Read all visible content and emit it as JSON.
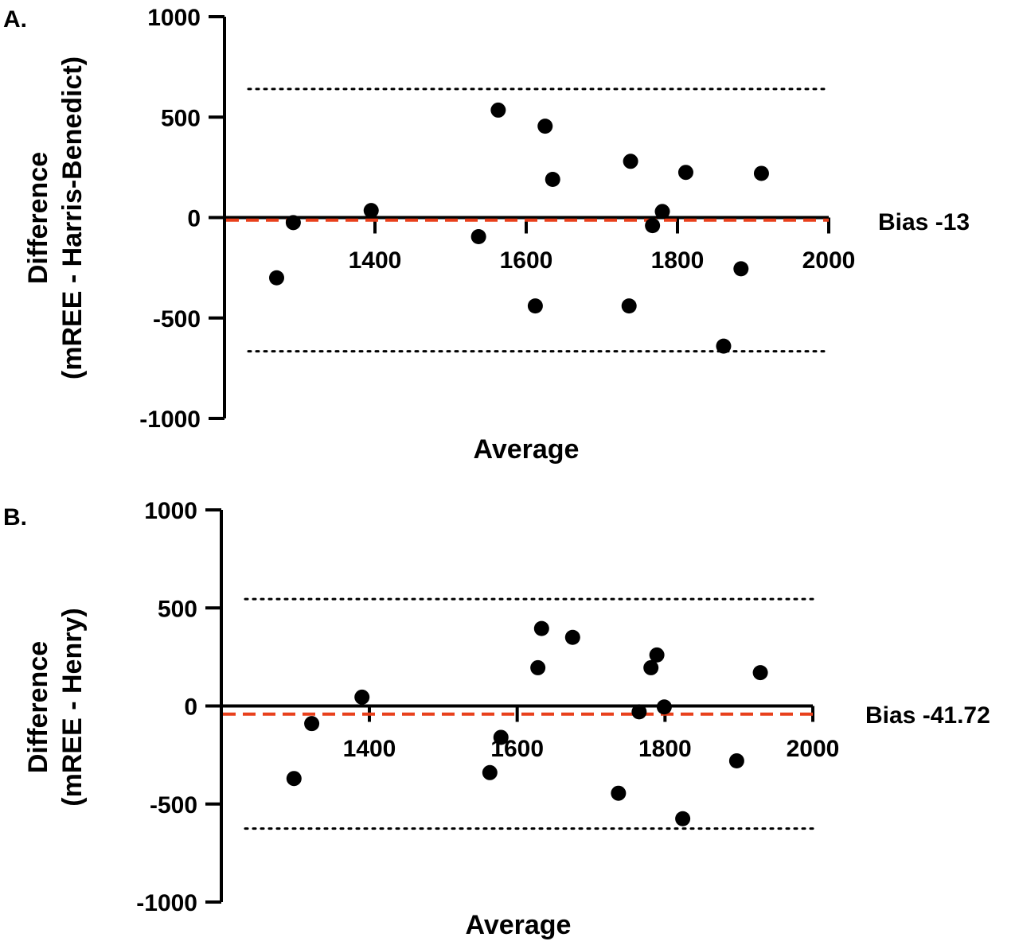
{
  "chart_data": [
    {
      "type": "scatter",
      "panel_label": "A.",
      "xlabel": "Average",
      "ylabel_lines": [
        "Difference",
        "(mREE - Harris-Benedict)"
      ],
      "ylim": [
        -1000,
        1000
      ],
      "yticks": [
        "1000",
        "500",
        "0",
        "-500",
        "-1000"
      ],
      "xticks": [
        "1400",
        "1600",
        "1800",
        "2000"
      ],
      "bias_label": "Bias -13",
      "bias": -13,
      "loa_upper": 640,
      "loa_lower": -666,
      "points": [
        {
          "x": 1270,
          "y": -300
        },
        {
          "x": 1292,
          "y": -25
        },
        {
          "x": 1395,
          "y": 35
        },
        {
          "x": 1537,
          "y": -95
        },
        {
          "x": 1563,
          "y": 535
        },
        {
          "x": 1612,
          "y": -440
        },
        {
          "x": 1625,
          "y": 455
        },
        {
          "x": 1635,
          "y": 190
        },
        {
          "x": 1736,
          "y": -440
        },
        {
          "x": 1738,
          "y": 280
        },
        {
          "x": 1767,
          "y": -40
        },
        {
          "x": 1780,
          "y": 30
        },
        {
          "x": 1811,
          "y": 225
        },
        {
          "x": 1861,
          "y": -640
        },
        {
          "x": 1884,
          "y": -255
        },
        {
          "x": 1911,
          "y": 220
        }
      ],
      "colors": {
        "bias_line": "#e8401c",
        "points": "#000000"
      }
    },
    {
      "type": "scatter",
      "panel_label": "B.",
      "xlabel": "Average",
      "ylabel_lines": [
        "Difference",
        "(mREE - Henry)"
      ],
      "ylim": [
        -1000,
        1000
      ],
      "yticks": [
        "1000",
        "500",
        "0",
        "-500",
        "-1000"
      ],
      "xticks": [
        "1400",
        "1600",
        "1800",
        "2000"
      ],
      "bias_label": "Bias -41.72",
      "bias": -41.72,
      "loa_upper": 545,
      "loa_lower": -625,
      "points": [
        {
          "x": 1298,
          "y": -370
        },
        {
          "x": 1322,
          "y": -90
        },
        {
          "x": 1390,
          "y": 45
        },
        {
          "x": 1563,
          "y": -340
        },
        {
          "x": 1578,
          "y": -160
        },
        {
          "x": 1628,
          "y": 195
        },
        {
          "x": 1633,
          "y": 395
        },
        {
          "x": 1675,
          "y": 350
        },
        {
          "x": 1737,
          "y": -445
        },
        {
          "x": 1765,
          "y": -30
        },
        {
          "x": 1781,
          "y": 195
        },
        {
          "x": 1789,
          "y": 260
        },
        {
          "x": 1799,
          "y": -5
        },
        {
          "x": 1824,
          "y": -575
        },
        {
          "x": 1897,
          "y": -280
        },
        {
          "x": 1929,
          "y": 170
        }
      ],
      "colors": {
        "bias_line": "#e8401c",
        "points": "#000000"
      }
    }
  ]
}
